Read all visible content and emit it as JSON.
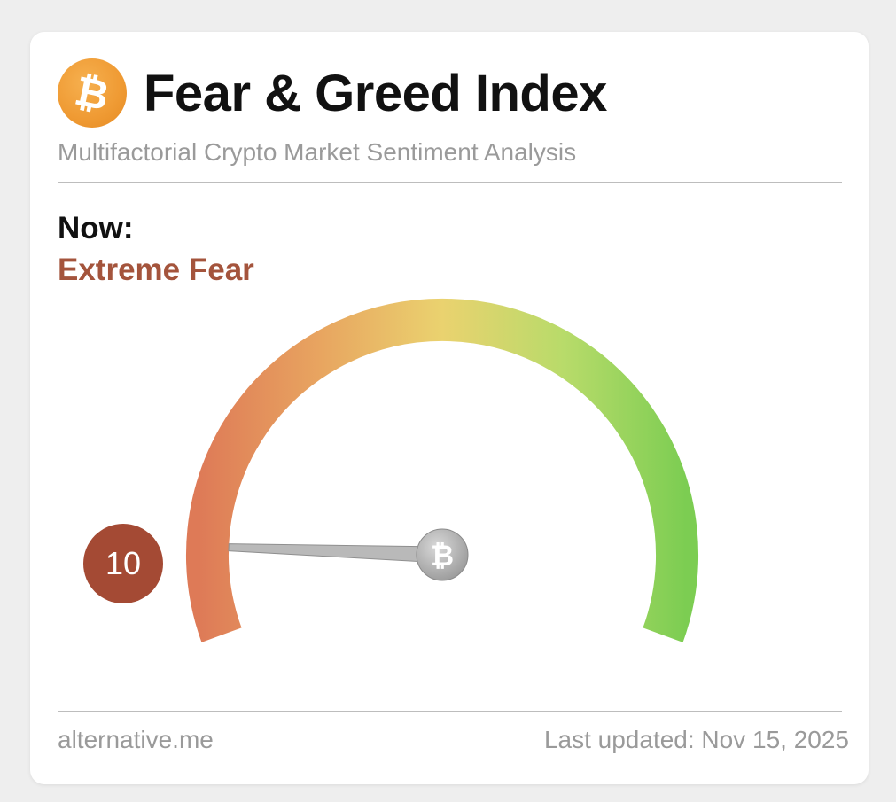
{
  "header": {
    "logo_icon": "bitcoin-icon",
    "title": "Fear & Greed Index",
    "subtitle": "Multifactorial Crypto Market Sentiment Analysis"
  },
  "status": {
    "now_label": "Now:",
    "classification": "Extreme Fear",
    "value": "10",
    "value_number": 10,
    "scale_min": 0,
    "scale_max": 100
  },
  "footer": {
    "source": "alternative.me",
    "last_updated": "Last updated: Nov 15, 2025"
  },
  "colors": {
    "classification": "#a4543c",
    "badge": "#a44a34",
    "gauge_fear": "#de7a57",
    "gauge_neutral": "#ead26f",
    "gauge_greed": "#7ccd52",
    "logo": "#ef9a33"
  }
}
